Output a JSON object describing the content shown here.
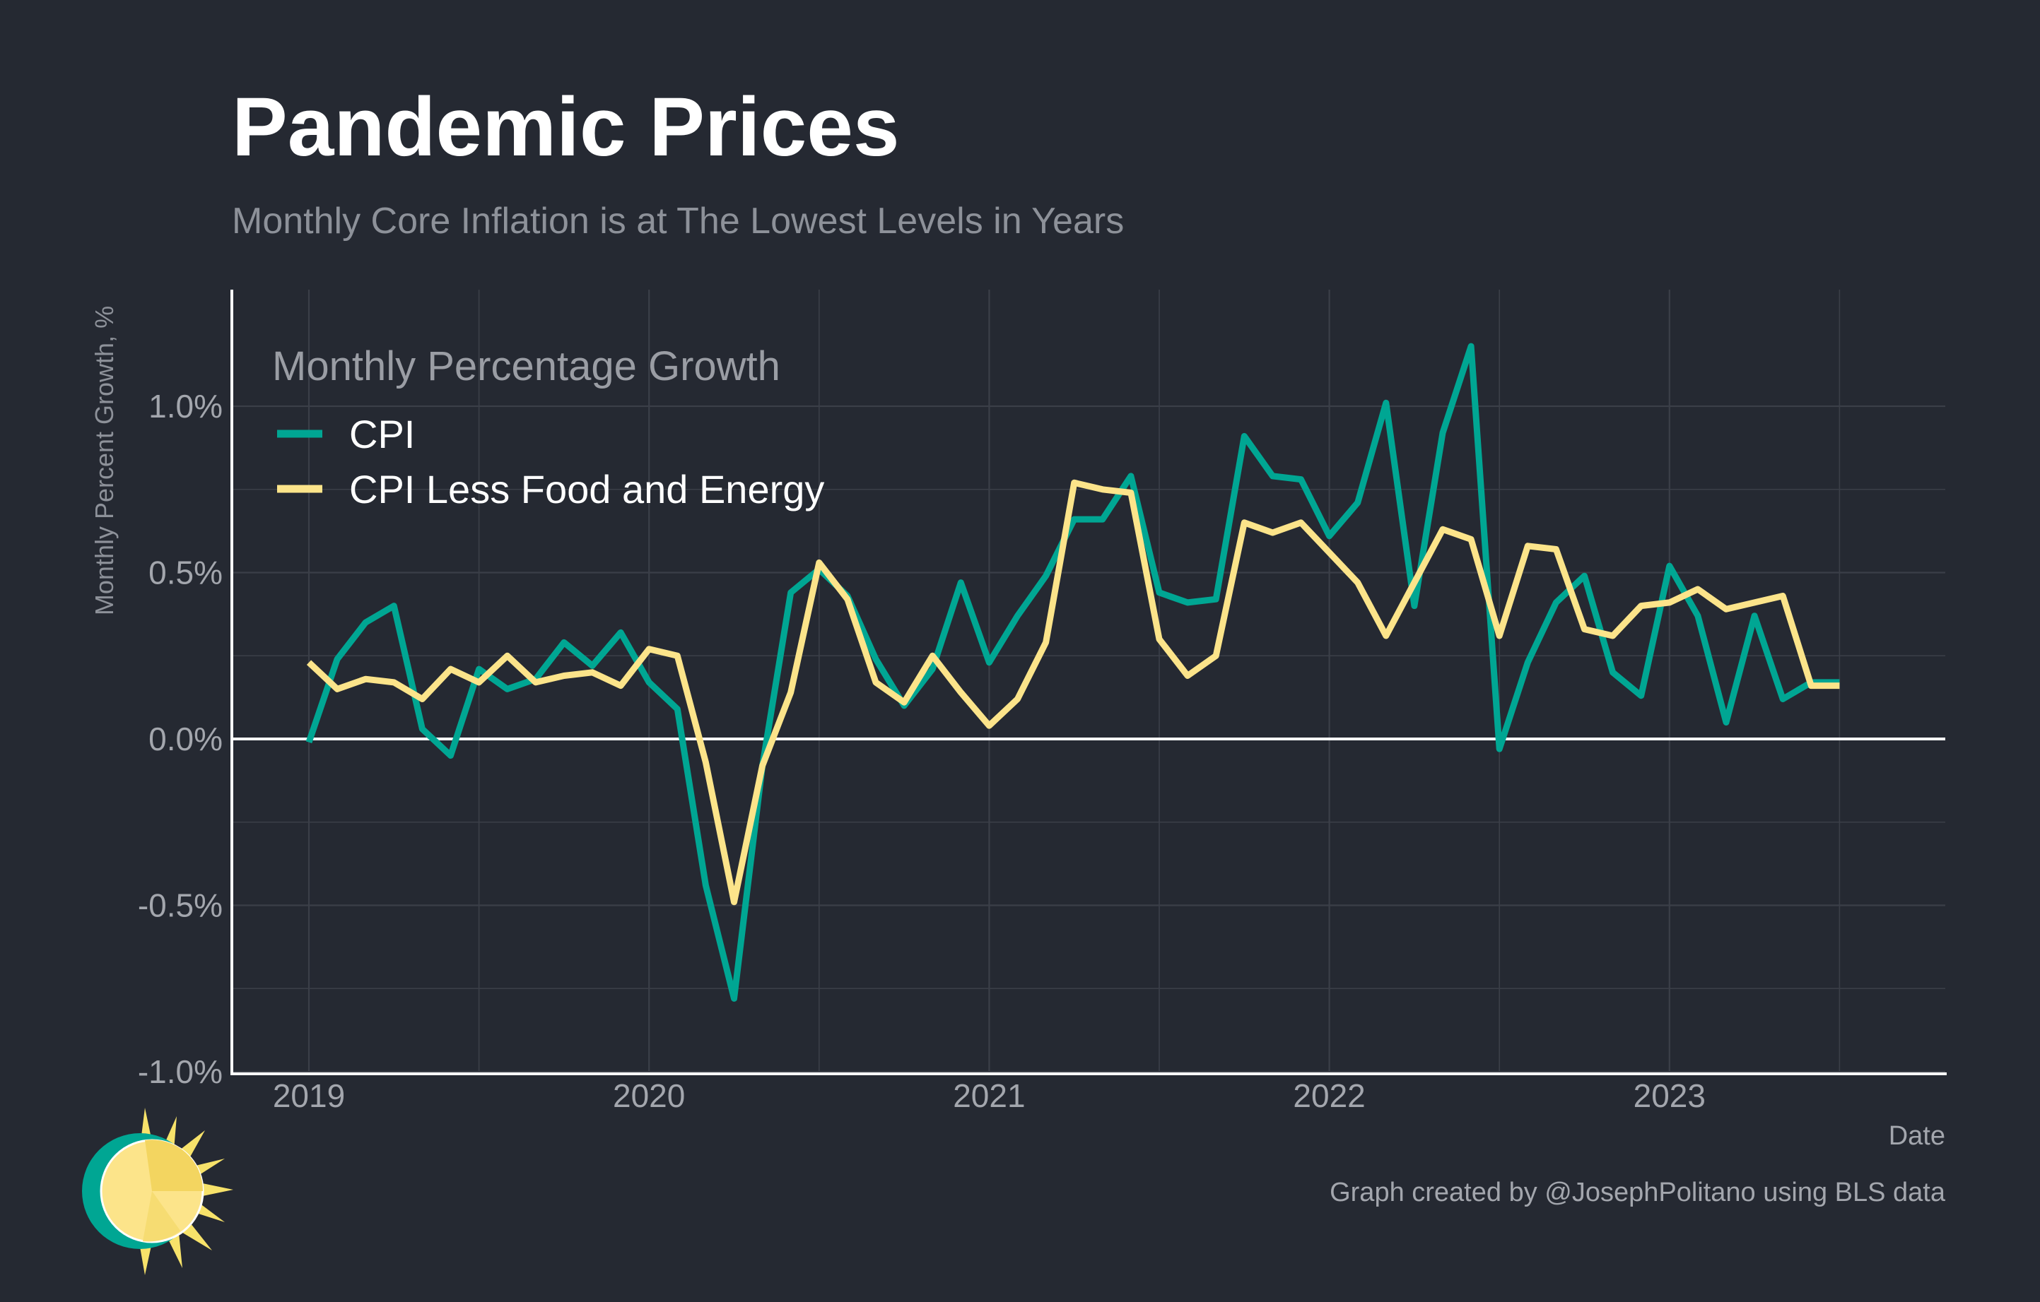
{
  "title": "Pandemic Prices",
  "subtitle": "Monthly Core Inflation is at The Lowest Levels in Years",
  "caption": "Graph created by @JosephPolitano using BLS data",
  "colors": {
    "background": "#252932",
    "cpi": "#00a693",
    "core": "#fce48a",
    "grid": "#3b3f48",
    "zero_line": "#ffffff"
  },
  "chart_data": {
    "type": "line",
    "xlabel": "Date",
    "ylabel": "Monthly Percent Growth, %",
    "ylim": [
      -1.0,
      1.0
    ],
    "y_ticks": [
      1.0,
      0.5,
      0.0,
      -0.5,
      -1.0
    ],
    "y_tick_labels": [
      "1.0%",
      "0.5%",
      "0.0%",
      "-0.5%",
      "-1.0%"
    ],
    "x_tick_labels": [
      "2019",
      "2020",
      "2021",
      "2022",
      "2023"
    ],
    "x_range": [
      "2019-01",
      "2023-07"
    ],
    "grid": true,
    "legend": {
      "title": "Monthly Percentage Growth",
      "placement": "top-left"
    },
    "x": [
      "2019-01",
      "2019-02",
      "2019-03",
      "2019-04",
      "2019-05",
      "2019-06",
      "2019-07",
      "2019-08",
      "2019-09",
      "2019-10",
      "2019-11",
      "2019-12",
      "2020-01",
      "2020-02",
      "2020-03",
      "2020-04",
      "2020-05",
      "2020-06",
      "2020-07",
      "2020-08",
      "2020-09",
      "2020-10",
      "2020-11",
      "2020-12",
      "2021-01",
      "2021-02",
      "2021-03",
      "2021-04",
      "2021-05",
      "2021-06",
      "2021-07",
      "2021-08",
      "2021-09",
      "2021-10",
      "2021-11",
      "2021-12",
      "2022-01",
      "2022-02",
      "2022-03",
      "2022-04",
      "2022-05",
      "2022-06",
      "2022-07",
      "2022-08",
      "2022-09",
      "2022-10",
      "2022-11",
      "2022-12",
      "2023-01",
      "2023-02",
      "2023-03",
      "2023-04",
      "2023-05",
      "2023-06",
      "2023-07"
    ],
    "series": [
      {
        "name": "CPI",
        "color": "#00a693",
        "values": [
          -0.01,
          0.24,
          0.35,
          0.4,
          0.03,
          -0.05,
          0.21,
          0.15,
          0.18,
          0.29,
          0.22,
          0.32,
          0.17,
          0.09,
          -0.44,
          -0.78,
          -0.08,
          0.44,
          0.51,
          0.43,
          0.24,
          0.1,
          0.21,
          0.47,
          0.23,
          0.37,
          0.49,
          0.66,
          0.66,
          0.79,
          0.44,
          0.41,
          0.42,
          0.91,
          0.79,
          0.78,
          0.61,
          0.71,
          1.01,
          0.4,
          0.92,
          1.18,
          -0.03,
          0.23,
          0.41,
          0.49,
          0.2,
          0.13,
          0.52,
          0.37,
          0.05,
          0.37,
          0.12,
          0.17,
          0.17
        ]
      },
      {
        "name": "CPI Less Food and Energy",
        "color": "#fce48a",
        "values": [
          0.23,
          0.15,
          0.18,
          0.17,
          0.12,
          0.21,
          0.17,
          0.25,
          0.17,
          0.19,
          0.2,
          0.16,
          0.27,
          0.25,
          -0.07,
          -0.49,
          -0.08,
          0.14,
          0.53,
          0.42,
          0.17,
          0.11,
          0.25,
          0.14,
          0.04,
          0.12,
          0.29,
          0.77,
          0.75,
          0.74,
          0.3,
          0.19,
          0.25,
          0.65,
          0.62,
          0.65,
          0.56,
          0.47,
          0.31,
          0.47,
          0.63,
          0.6,
          0.31,
          0.58,
          0.57,
          0.33,
          0.31,
          0.4,
          0.41,
          0.45,
          0.39,
          0.41,
          0.43,
          0.16,
          0.16
        ]
      }
    ]
  }
}
